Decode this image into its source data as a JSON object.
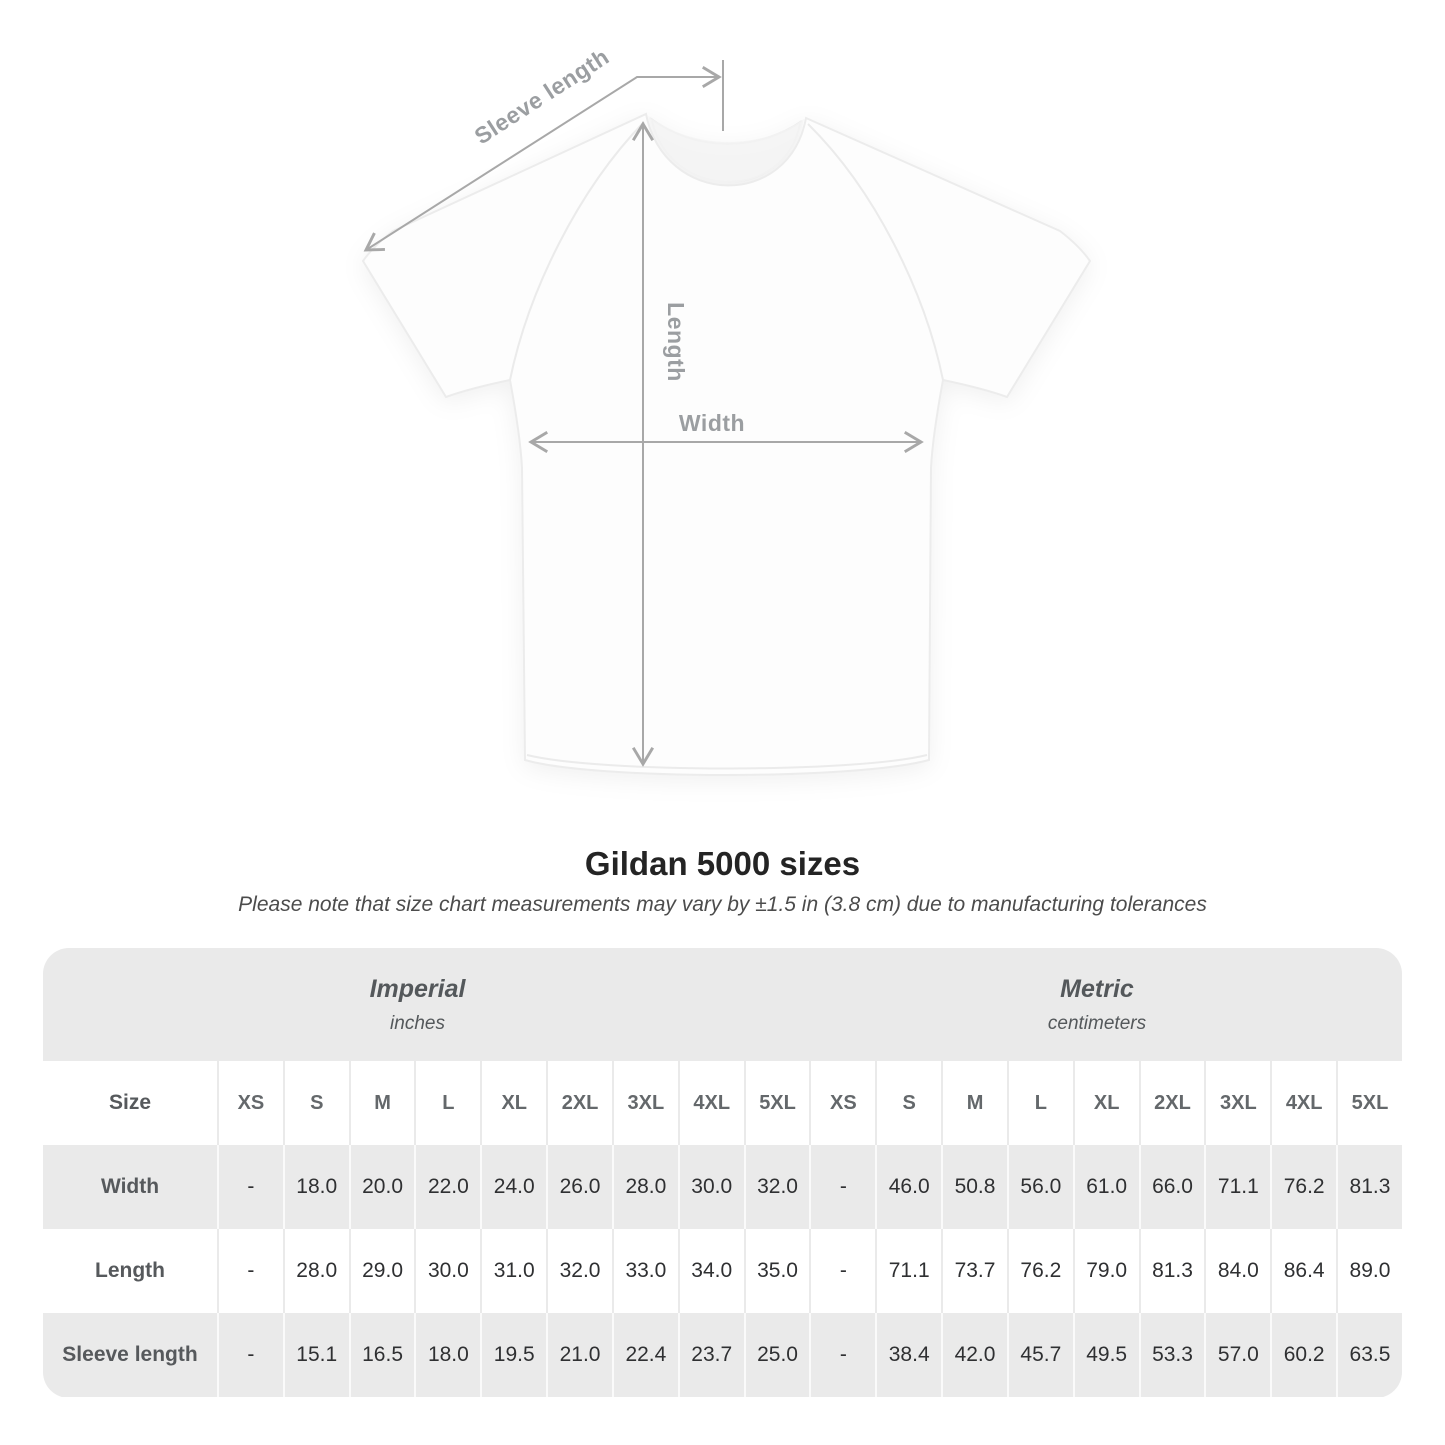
{
  "diagram": {
    "labels": {
      "sleeve_length": "Sleeve length",
      "length": "Length",
      "width": "Width"
    }
  },
  "caption": {
    "title": "Gildan 5000 sizes",
    "subtitle": "Please note that size chart measurements may vary by ±1.5 in (3.8 cm) due to manufacturing tolerances"
  },
  "table": {
    "groups": [
      {
        "label": "Imperial",
        "sublabel": "inches"
      },
      {
        "label": "Metric",
        "sublabel": "centimeters"
      }
    ],
    "size_header": "Size",
    "columns": [
      "XS",
      "S",
      "M",
      "L",
      "XL",
      "2XL",
      "3XL",
      "4XL",
      "5XL",
      "XS",
      "S",
      "M",
      "L",
      "XL",
      "2XL",
      "3XL",
      "4XL",
      "5XL"
    ],
    "rows": [
      {
        "label": "Width",
        "values": [
          "-",
          "18.0",
          "20.0",
          "22.0",
          "24.0",
          "26.0",
          "28.0",
          "30.0",
          "32.0",
          "-",
          "46.0",
          "50.8",
          "56.0",
          "61.0",
          "66.0",
          "71.1",
          "76.2",
          "81.3"
        ]
      },
      {
        "label": "Length",
        "values": [
          "-",
          "28.0",
          "29.0",
          "30.0",
          "31.0",
          "32.0",
          "33.0",
          "34.0",
          "35.0",
          "-",
          "71.1",
          "73.7",
          "76.2",
          "79.0",
          "81.3",
          "84.0",
          "86.4",
          "89.0"
        ]
      },
      {
        "label": "Sleeve length",
        "values": [
          "-",
          "15.1",
          "16.5",
          "18.0",
          "19.5",
          "21.0",
          "22.4",
          "23.7",
          "25.0",
          "-",
          "38.4",
          "42.0",
          "45.7",
          "49.5",
          "53.3",
          "57.0",
          "60.2",
          "63.5"
        ]
      }
    ]
  },
  "chart_data": {
    "type": "table",
    "title": "Gildan 5000 sizes",
    "columns": [
      "Size",
      "XS",
      "S",
      "M",
      "L",
      "XL",
      "2XL",
      "3XL",
      "4XL",
      "5XL",
      "XS",
      "S",
      "M",
      "L",
      "XL",
      "2XL",
      "3XL",
      "4XL",
      "5XL"
    ],
    "units": [
      "Imperial inches (cols 1-9)",
      "Metric centimeters (cols 10-18)"
    ],
    "rows": [
      [
        "Width",
        "-",
        18.0,
        20.0,
        22.0,
        24.0,
        26.0,
        28.0,
        30.0,
        32.0,
        "-",
        46.0,
        50.8,
        56.0,
        61.0,
        66.0,
        71.1,
        76.2,
        81.3
      ],
      [
        "Length",
        "-",
        28.0,
        29.0,
        30.0,
        31.0,
        32.0,
        33.0,
        34.0,
        35.0,
        "-",
        71.1,
        73.7,
        76.2,
        79.0,
        81.3,
        84.0,
        86.4,
        89.0
      ],
      [
        "Sleeve length",
        "-",
        15.1,
        16.5,
        18.0,
        19.5,
        21.0,
        22.4,
        23.7,
        25.0,
        "-",
        38.4,
        42.0,
        45.7,
        49.5,
        53.3,
        57.0,
        60.2,
        63.5
      ]
    ]
  },
  "colors": {
    "stripe_gray": "#eaeaea",
    "annotation_line": "#a8a8a8",
    "annotation_text": "#9b9ea1",
    "header_text": "#64686b",
    "body_text": "#2f3032"
  }
}
